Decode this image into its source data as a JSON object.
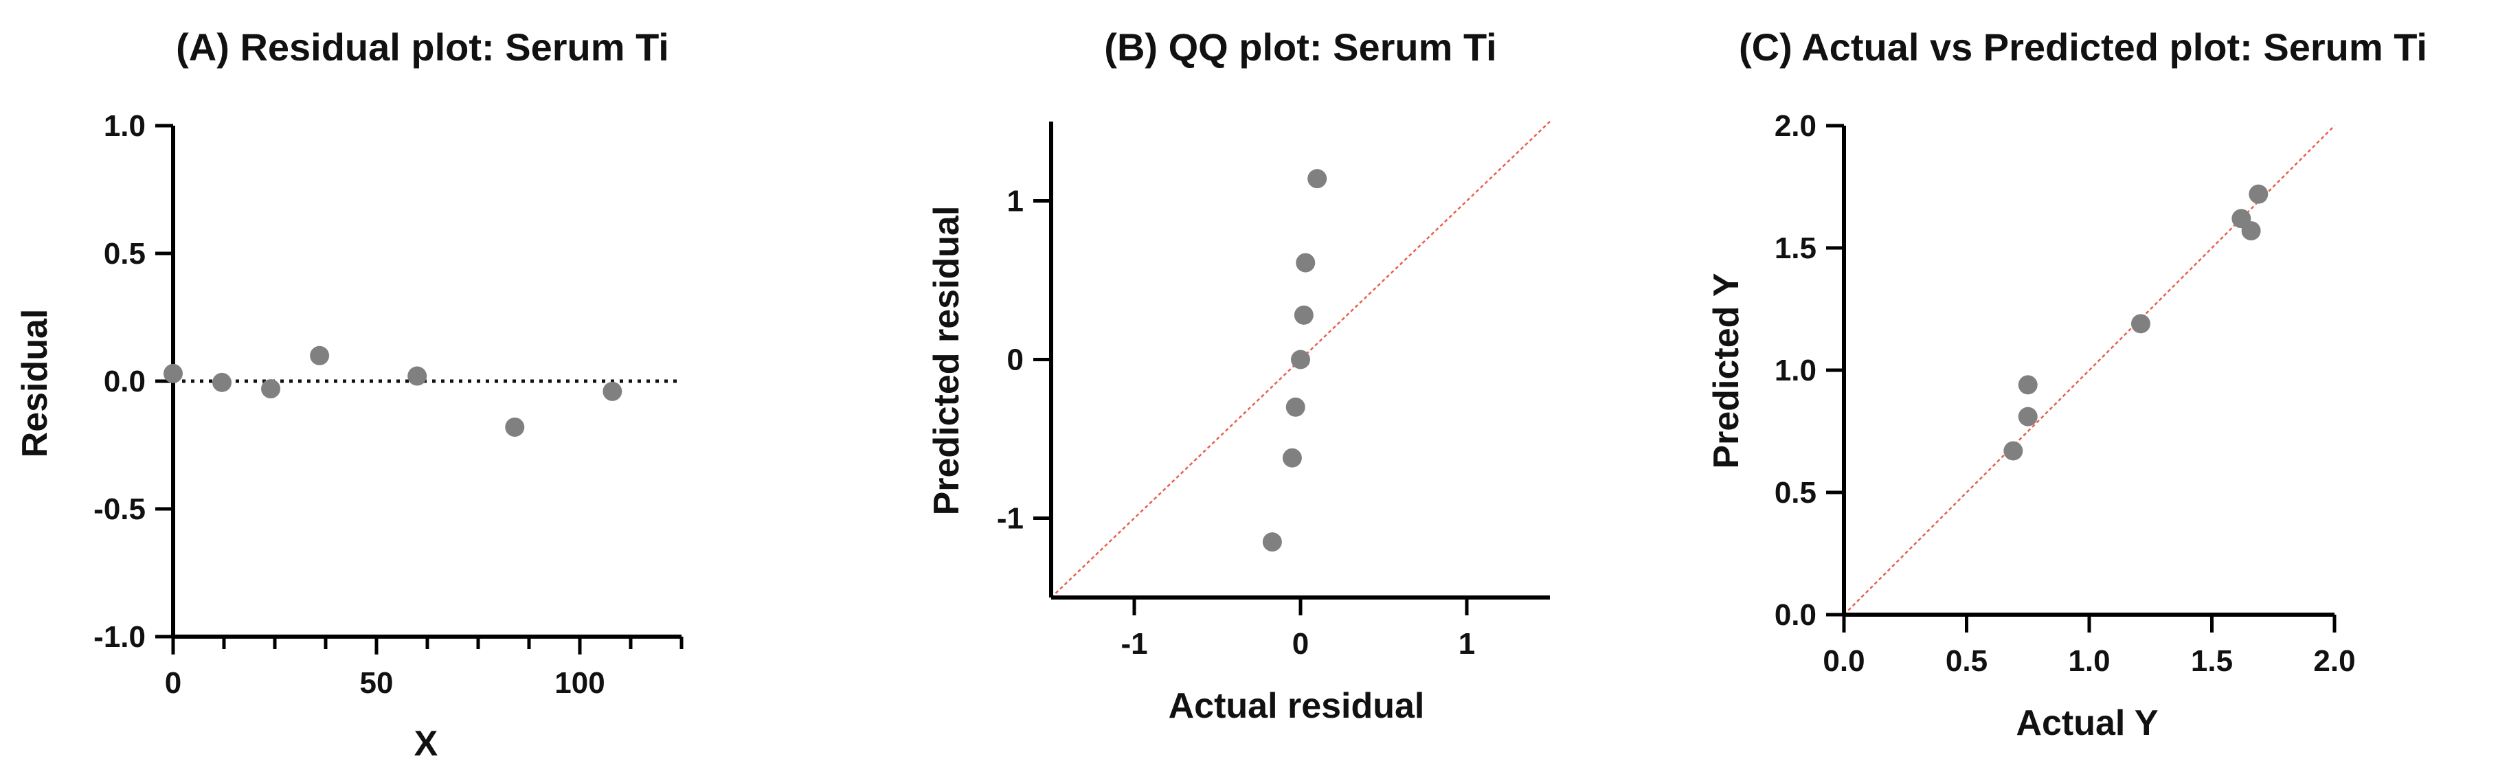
{
  "chart_data": [
    {
      "id": "A",
      "type": "scatter",
      "title": "(A) Residual plot: Serum Ti",
      "xlabel": "X",
      "ylabel": "Residual",
      "xlim": [
        0,
        125
      ],
      "ylim": [
        -1.0,
        1.0
      ],
      "xticks": [
        0,
        50,
        100
      ],
      "xtick_labels": [
        "0",
        "50",
        "100"
      ],
      "xminor_step": 12.5,
      "yticks": [
        -1.0,
        -0.5,
        0.0,
        0.5,
        1.0
      ],
      "ytick_labels": [
        "-1.0",
        "-0.5",
        "0.0",
        "0.5",
        "1.0"
      ],
      "reference_line": {
        "kind": "horizontal",
        "y": 0,
        "style": "dotted",
        "color": "#111111"
      },
      "point_color": "#808080",
      "points": [
        {
          "x": 0,
          "y": 0.03
        },
        {
          "x": 12,
          "y": -0.005
        },
        {
          "x": 24,
          "y": -0.03
        },
        {
          "x": 36,
          "y": 0.1
        },
        {
          "x": 60,
          "y": 0.02
        },
        {
          "x": 84,
          "y": -0.18
        },
        {
          "x": 108,
          "y": -0.04
        }
      ]
    },
    {
      "id": "B",
      "type": "scatter",
      "title": "(B) QQ plot: Serum Ti",
      "xlabel": "Actual residual",
      "ylabel": "Predicted residual",
      "xlim": [
        -1.5,
        1.5
      ],
      "ylim": [
        -1.5,
        1.5
      ],
      "xticks": [
        -1,
        0,
        1
      ],
      "xtick_labels": [
        "-1",
        "0",
        "1"
      ],
      "yticks": [
        -1,
        0,
        1
      ],
      "ytick_labels": [
        "-1",
        "0",
        "1"
      ],
      "reference_line": {
        "kind": "identity",
        "style": "dotted",
        "color": "#e8604c"
      },
      "point_color": "#808080",
      "points": [
        {
          "x": -0.17,
          "y": -1.15
        },
        {
          "x": -0.05,
          "y": -0.62
        },
        {
          "x": -0.03,
          "y": -0.3
        },
        {
          "x": 0.0,
          "y": 0.0
        },
        {
          "x": 0.02,
          "y": 0.28
        },
        {
          "x": 0.03,
          "y": 0.61
        },
        {
          "x": 0.1,
          "y": 1.14
        }
      ]
    },
    {
      "id": "C",
      "type": "scatter",
      "title": "(C) Actual vs Predicted plot: Serum Ti",
      "xlabel": "Actual Y",
      "ylabel": "Predicted Y",
      "xlim": [
        0.0,
        2.0
      ],
      "ylim": [
        0.0,
        2.0
      ],
      "xticks": [
        0.0,
        0.5,
        1.0,
        1.5,
        2.0
      ],
      "xtick_labels": [
        "0.0",
        "0.5",
        "1.0",
        "1.5",
        "2.0"
      ],
      "yticks": [
        0.0,
        0.5,
        1.0,
        1.5,
        2.0
      ],
      "ytick_labels": [
        "0.0",
        "0.5",
        "1.0",
        "1.5",
        "2.0"
      ],
      "reference_line": {
        "kind": "identity",
        "style": "dotted",
        "color": "#e8604c"
      },
      "point_color": "#808080",
      "points": [
        {
          "x": 0.69,
          "y": 0.67
        },
        {
          "x": 0.75,
          "y": 0.81
        },
        {
          "x": 0.75,
          "y": 0.94
        },
        {
          "x": 1.21,
          "y": 1.19
        },
        {
          "x": 1.62,
          "y": 1.62
        },
        {
          "x": 1.66,
          "y": 1.57
        },
        {
          "x": 1.69,
          "y": 1.72
        }
      ]
    }
  ]
}
